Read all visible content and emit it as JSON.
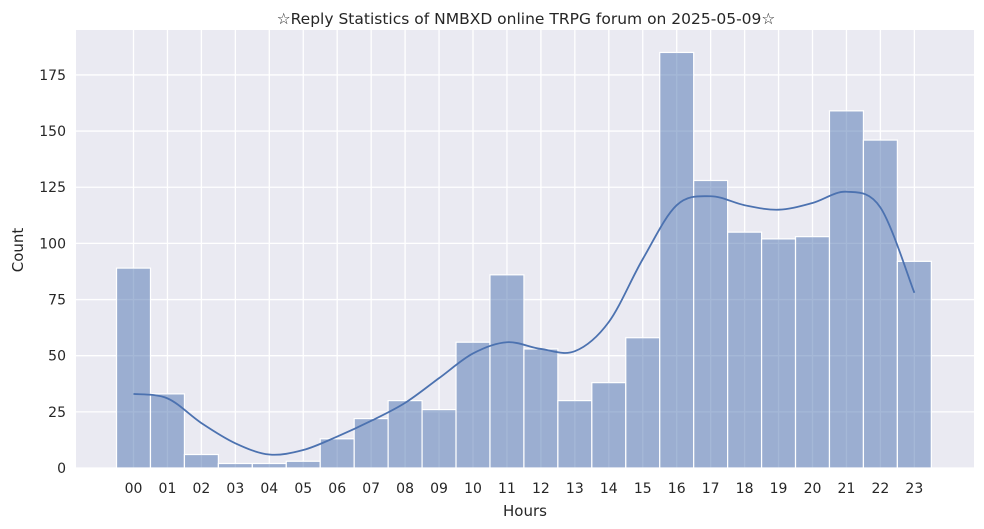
{
  "chart_data": {
    "type": "bar",
    "title": "☆Reply Statistics of NMBXD online TRPG forum on 2025-05-09☆",
    "xlabel": "Hours",
    "ylabel": "Count",
    "categories": [
      "00",
      "01",
      "02",
      "03",
      "04",
      "05",
      "06",
      "07",
      "08",
      "09",
      "10",
      "11",
      "12",
      "13",
      "14",
      "15",
      "16",
      "17",
      "18",
      "19",
      "20",
      "21",
      "22",
      "23"
    ],
    "values": [
      89,
      33,
      6,
      2,
      2,
      3,
      13,
      22,
      30,
      26,
      56,
      86,
      53,
      30,
      38,
      58,
      185,
      128,
      105,
      102,
      103,
      159,
      146,
      92
    ],
    "ylim": [
      0,
      195
    ],
    "yticks": [
      0,
      25,
      50,
      75,
      100,
      125,
      150,
      175
    ],
    "kde_curve": {
      "x": [
        "00",
        "01",
        "02",
        "03",
        "04",
        "05",
        "06",
        "07",
        "08",
        "09",
        "10",
        "11",
        "12",
        "13",
        "14",
        "15",
        "16",
        "17",
        "18",
        "19",
        "20",
        "21",
        "22",
        "23"
      ],
      "values": [
        33,
        31,
        20,
        11,
        6,
        8,
        14,
        21,
        29,
        40,
        51,
        56,
        53,
        52,
        65,
        93,
        117,
        121,
        117,
        115,
        118,
        123,
        116,
        78
      ]
    },
    "grid": true,
    "background_color": "#eaeaf2",
    "bar_color": "#4c72b0",
    "curve_color": "#4c72b0"
  }
}
